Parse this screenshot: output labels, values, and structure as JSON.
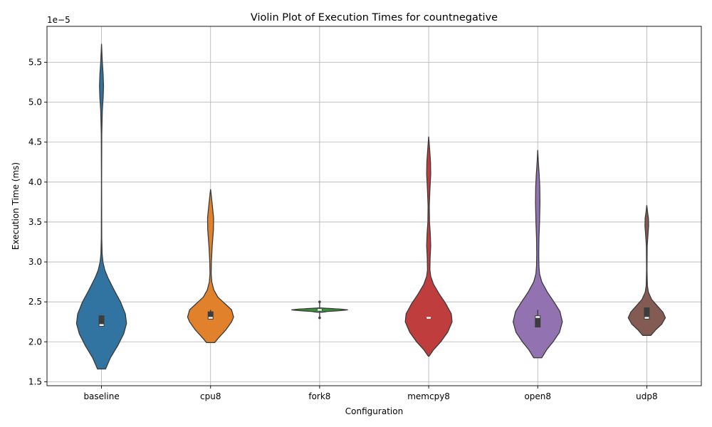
{
  "chart_data": {
    "type": "violin",
    "title": "Violin Plot of Execution Times for countnegative",
    "xlabel": "Configuration",
    "ylabel": "Execution Time (ms)",
    "y_offset_text": "1e−5",
    "ylim": [
      1.45,
      5.95
    ],
    "yticks": [
      1.5,
      2.0,
      2.5,
      3.0,
      3.5,
      4.0,
      4.5,
      5.0,
      5.5
    ],
    "ytick_labels": [
      "1.5",
      "2.0",
      "2.5",
      "3.0",
      "3.5",
      "4.0",
      "4.5",
      "5.0",
      "5.5"
    ],
    "grid": true,
    "categories": [
      "baseline",
      "cpu8",
      "fork8",
      "memcpy8",
      "open8",
      "udp8"
    ],
    "colors": [
      "#3274a1",
      "#e1812c",
      "#3a923a",
      "#c03d3e",
      "#9372b2",
      "#845b53"
    ],
    "violins": [
      {
        "name": "baseline",
        "min": 1.66,
        "max": 5.73,
        "q1": 2.19,
        "median": 2.21,
        "q3": 2.33,
        "whisker_low": 2.19,
        "whisker_high": 2.33,
        "profile": [
          [
            1.66,
            0.1
          ],
          [
            1.8,
            0.22
          ],
          [
            1.95,
            0.4
          ],
          [
            2.1,
            0.55
          ],
          [
            2.23,
            0.62
          ],
          [
            2.35,
            0.59
          ],
          [
            2.5,
            0.47
          ],
          [
            2.65,
            0.31
          ],
          [
            2.8,
            0.16
          ],
          [
            2.9,
            0.08
          ],
          [
            3.0,
            0.035
          ],
          [
            3.1,
            0.015
          ],
          [
            3.3,
            0.005
          ],
          [
            4.0,
            0.002
          ],
          [
            4.6,
            0.006
          ],
          [
            4.9,
            0.02
          ],
          [
            5.05,
            0.04
          ],
          [
            5.2,
            0.05
          ],
          [
            5.35,
            0.04
          ],
          [
            5.5,
            0.02
          ],
          [
            5.73,
            0.0
          ]
        ]
      },
      {
        "name": "cpu8",
        "min": 1.99,
        "max": 3.91,
        "q1": 2.28,
        "median": 2.3,
        "q3": 2.38,
        "whisker_low": 2.28,
        "whisker_high": 2.4,
        "profile": [
          [
            1.99,
            0.1
          ],
          [
            2.05,
            0.2
          ],
          [
            2.15,
            0.38
          ],
          [
            2.25,
            0.52
          ],
          [
            2.31,
            0.57
          ],
          [
            2.4,
            0.52
          ],
          [
            2.48,
            0.35
          ],
          [
            2.56,
            0.18
          ],
          [
            2.65,
            0.08
          ],
          [
            2.75,
            0.03
          ],
          [
            2.85,
            0.015
          ],
          [
            3.0,
            0.02
          ],
          [
            3.2,
            0.04
          ],
          [
            3.4,
            0.07
          ],
          [
            3.55,
            0.075
          ],
          [
            3.7,
            0.045
          ],
          [
            3.82,
            0.02
          ],
          [
            3.91,
            0.0
          ]
        ]
      },
      {
        "name": "fork8",
        "min": 2.37,
        "max": 2.42,
        "q1": 2.39,
        "median": 2.4,
        "q3": 2.41,
        "whisker_low": 2.3,
        "whisker_high": 2.5,
        "profile": [
          [
            2.37,
            0.06
          ],
          [
            2.38,
            0.2
          ],
          [
            2.39,
            0.5
          ],
          [
            2.4,
            0.7
          ],
          [
            2.41,
            0.5
          ],
          [
            2.42,
            0.15
          ],
          [
            2.425,
            0.0
          ]
        ]
      },
      {
        "name": "memcpy8",
        "min": 1.82,
        "max": 4.57,
        "q1": 2.3,
        "median": 2.3,
        "q3": 2.3,
        "whisker_low": 2.3,
        "whisker_high": 2.3,
        "profile": [
          [
            1.82,
            0.01
          ],
          [
            1.9,
            0.12
          ],
          [
            2.0,
            0.3
          ],
          [
            2.12,
            0.47
          ],
          [
            2.25,
            0.58
          ],
          [
            2.35,
            0.56
          ],
          [
            2.48,
            0.42
          ],
          [
            2.6,
            0.26
          ],
          [
            2.72,
            0.12
          ],
          [
            2.82,
            0.05
          ],
          [
            2.9,
            0.03
          ],
          [
            3.05,
            0.035
          ],
          [
            3.2,
            0.05
          ],
          [
            3.35,
            0.04
          ],
          [
            3.5,
            0.02
          ],
          [
            3.7,
            0.015
          ],
          [
            3.9,
            0.03
          ],
          [
            4.1,
            0.05
          ],
          [
            4.25,
            0.045
          ],
          [
            4.4,
            0.025
          ],
          [
            4.57,
            0.0
          ]
        ]
      },
      {
        "name": "open8",
        "min": 1.8,
        "max": 4.4,
        "q1": 2.18,
        "median": 2.31,
        "q3": 2.33,
        "whisker_low": 2.18,
        "whisker_high": 2.4,
        "profile": [
          [
            1.8,
            0.1
          ],
          [
            1.9,
            0.22
          ],
          [
            2.0,
            0.38
          ],
          [
            2.12,
            0.54
          ],
          [
            2.25,
            0.61
          ],
          [
            2.38,
            0.55
          ],
          [
            2.5,
            0.4
          ],
          [
            2.62,
            0.24
          ],
          [
            2.75,
            0.1
          ],
          [
            2.85,
            0.045
          ],
          [
            2.95,
            0.03
          ],
          [
            3.1,
            0.025
          ],
          [
            3.3,
            0.03
          ],
          [
            3.5,
            0.045
          ],
          [
            3.75,
            0.055
          ],
          [
            3.95,
            0.05
          ],
          [
            4.1,
            0.035
          ],
          [
            4.25,
            0.015
          ],
          [
            4.4,
            0.0
          ]
        ]
      },
      {
        "name": "udp8",
        "min": 2.08,
        "max": 3.71,
        "q1": 2.28,
        "median": 2.3,
        "q3": 2.43,
        "whisker_low": 2.28,
        "whisker_high": 2.43,
        "profile": [
          [
            2.08,
            0.1
          ],
          [
            2.15,
            0.22
          ],
          [
            2.22,
            0.37
          ],
          [
            2.3,
            0.46
          ],
          [
            2.37,
            0.4
          ],
          [
            2.45,
            0.26
          ],
          [
            2.53,
            0.12
          ],
          [
            2.62,
            0.04
          ],
          [
            2.7,
            0.015
          ],
          [
            2.9,
            0.005
          ],
          [
            3.2,
            0.01
          ],
          [
            3.35,
            0.03
          ],
          [
            3.45,
            0.045
          ],
          [
            3.55,
            0.04
          ],
          [
            3.62,
            0.02
          ],
          [
            3.71,
            0.0
          ]
        ]
      }
    ]
  }
}
